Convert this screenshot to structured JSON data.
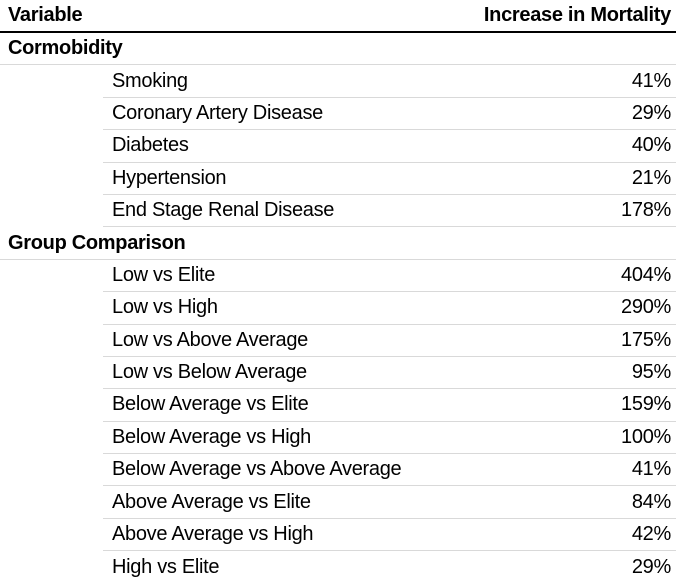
{
  "chart_data": {
    "type": "table",
    "columns": [
      "Variable",
      "Increase in Mortality"
    ],
    "sections": [
      {
        "label": "Cormobidity",
        "rows": [
          {
            "label": "Smoking",
            "value": "41%"
          },
          {
            "label": "Coronary Artery Disease",
            "value": "29%"
          },
          {
            "label": "Diabetes",
            "value": "40%"
          },
          {
            "label": "Hypertension",
            "value": "21%"
          },
          {
            "label": "End Stage Renal Disease",
            "value": "178%"
          }
        ]
      },
      {
        "label": "Group Comparison",
        "rows": [
          {
            "label": "Low vs Elite",
            "value": "404%"
          },
          {
            "label": "Low vs High",
            "value": "290%"
          },
          {
            "label": "Low vs Above Average",
            "value": "175%"
          },
          {
            "label": "Low vs Below Average",
            "value": "95%"
          },
          {
            "label": "Below Average vs Elite",
            "value": "159%"
          },
          {
            "label": "Below Average vs High",
            "value": "100%"
          },
          {
            "label": "Below Average vs Above Average",
            "value": "41%"
          },
          {
            "label": "Above Average vs Elite",
            "value": "84%"
          },
          {
            "label": "Above Average vs High",
            "value": "42%"
          },
          {
            "label": "High vs Elite",
            "value": "29%"
          }
        ]
      }
    ],
    "layout": {
      "header_rule_color": "#000000",
      "row_rule_color": "#d9d9d9",
      "text_color": "#000000",
      "background": "#ffffff",
      "value_alignment": "right",
      "grid": "horizontal-rules-only"
    }
  }
}
